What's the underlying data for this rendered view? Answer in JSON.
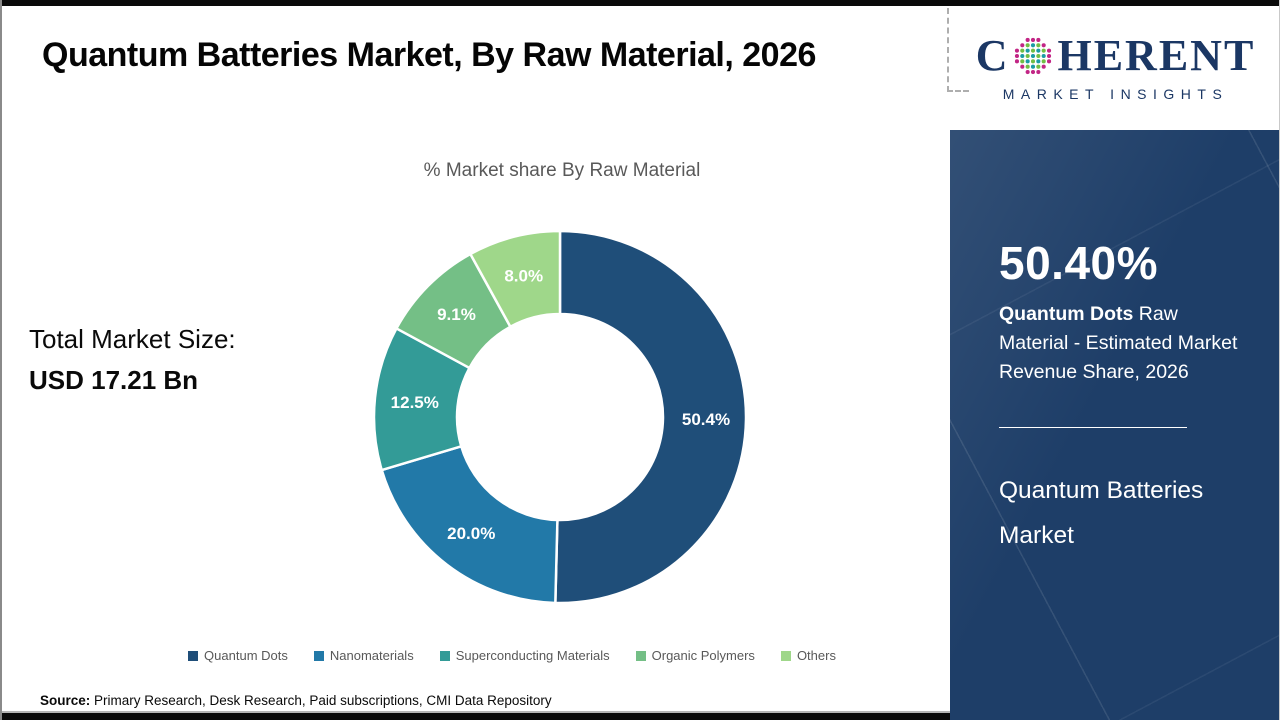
{
  "header": {
    "title": "Quantum Batteries Market, By Raw Material, 2026"
  },
  "logo": {
    "word_start": "C",
    "word_end": "HERENT",
    "tagline": "MARKET INSIGHTS",
    "navy": "#1b3764",
    "globe_colors": {
      "teal": "#1a9ca4",
      "green": "#72be44",
      "magenta": "#c22585"
    }
  },
  "chart_data": {
    "type": "pie",
    "subtype": "donut",
    "title": "% Market share By Raw Material",
    "categories": [
      "Quantum Dots",
      "Nanomaterials",
      "Superconducting Materials",
      "Organic Polymers",
      "Others"
    ],
    "values": [
      50.4,
      20.0,
      12.5,
      9.1,
      8.0
    ],
    "labels": [
      "50.4%",
      "20.0%",
      "12.5%",
      "9.1%",
      "8.0%"
    ],
    "colors": [
      "#1f4e79",
      "#2279a8",
      "#339b97",
      "#74bf86",
      "#9fd78a"
    ],
    "start_angle_deg": 0,
    "direction": "clockwise",
    "legend_position": "bottom"
  },
  "market_size": {
    "label": "Total Market Size:",
    "value": "USD 17.21 Bn"
  },
  "side_panel": {
    "background": "#1e3e68",
    "stat_value": "50.40%",
    "stat_highlight": "Quantum Dots",
    "stat_rest": " Raw Material - Estimated Market Revenue Share, 2026",
    "product": "Quantum Batteries Market"
  },
  "source": {
    "label": "Source:",
    "text": " Primary Research, Desk Research, Paid subscriptions, CMI Data Repository"
  }
}
